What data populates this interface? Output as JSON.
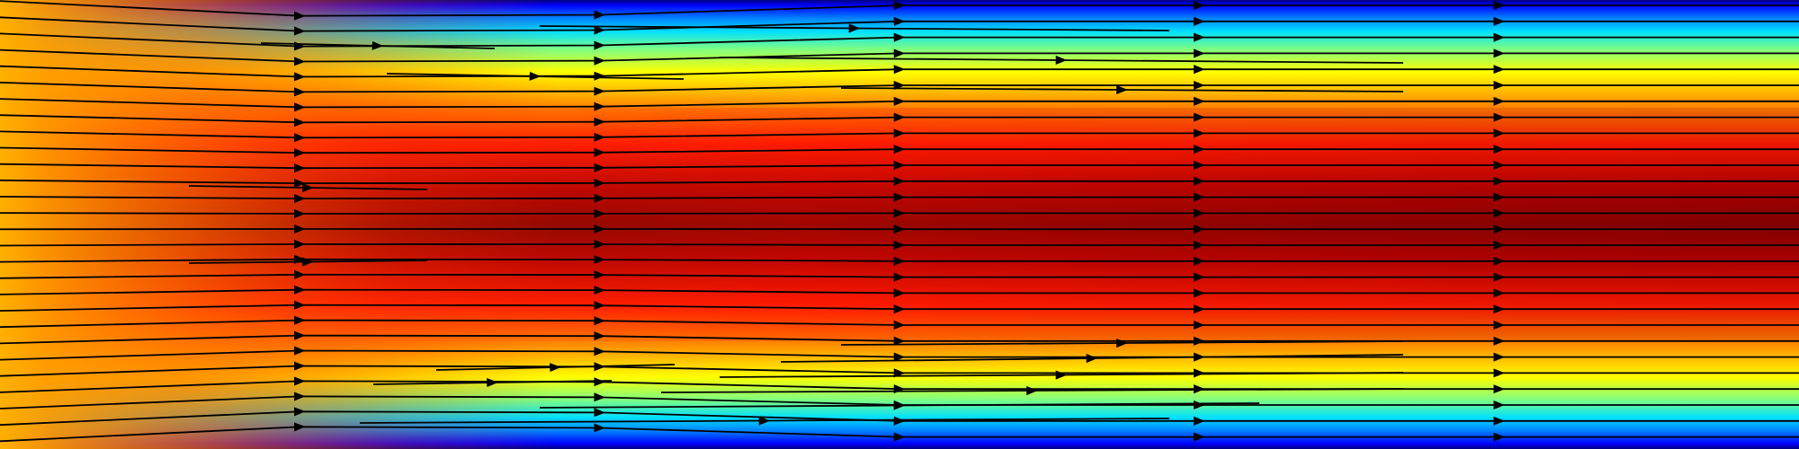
{
  "image": {
    "kind": "channel-flow-velocity-field",
    "colormap": "jet",
    "description_colors": [
      "#00007f",
      "#0000ff",
      "#00ffff",
      "#ffff00",
      "#ff8000",
      "#ff0000",
      "#7f0000"
    ],
    "overlay": "streamlines-with-arrows",
    "streamline_color": "#000000"
  }
}
